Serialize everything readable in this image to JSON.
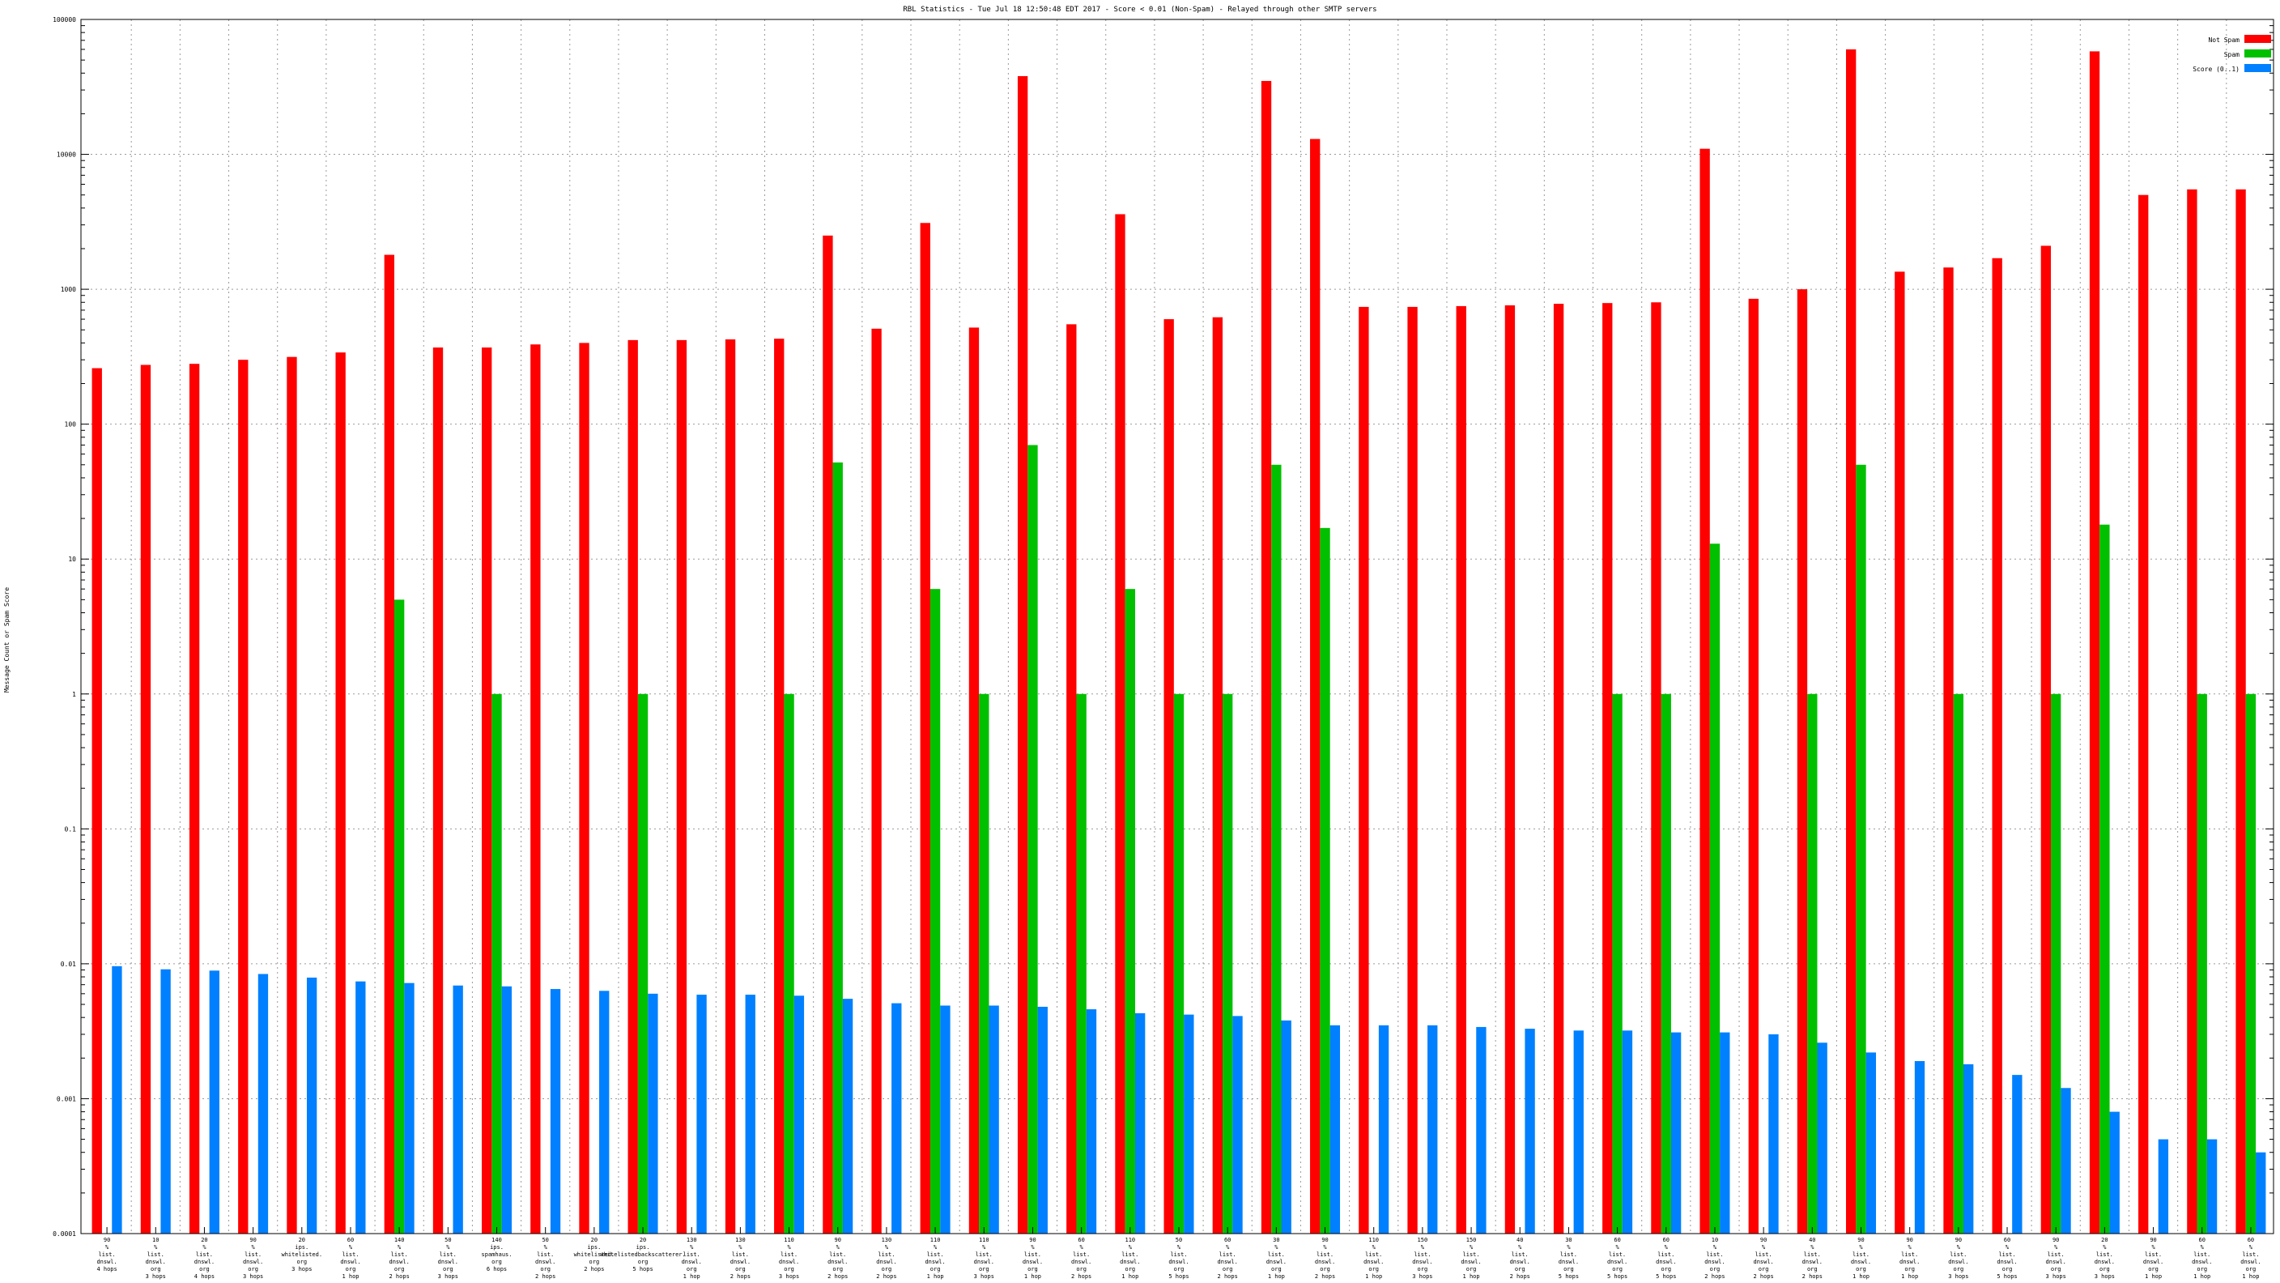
{
  "chart_data": {
    "type": "bar",
    "title": "RBL Statistics - Tue Jul 18 12:50:48 EDT 2017 - Score < 0.01 (Non-Spam) - Relayed through other SMTP servers",
    "ylabel": "Message Count or Spam Score",
    "xlabel": "",
    "y_scale": "log",
    "ylim": [
      0.0001,
      100000
    ],
    "y_ticks": [
      "0.0001",
      "0.001",
      "0.01",
      "0.1",
      "1",
      "10",
      "100",
      "1000",
      "10000",
      "100000"
    ],
    "grid": true,
    "legend_position": "top-right",
    "colors": {
      "not_spam": "#ff0000",
      "spam": "#00c000",
      "score": "#0080ff"
    },
    "categories": [
      [
        "90",
        "%",
        "list.",
        "dnswl.",
        "4 hops"
      ],
      [
        "10",
        "%",
        "list.",
        "dnswl.",
        "org",
        "3 hops"
      ],
      [
        "20",
        "%",
        "list.",
        "dnswl.",
        "org",
        "4 hops"
      ],
      [
        "90",
        "%",
        "list.",
        "dnswl.",
        "org",
        "3 hops"
      ],
      [
        "20",
        "ips.",
        "whitelisted.",
        "org",
        "3 hops"
      ],
      [
        "60",
        "%",
        "list.",
        "dnswl.",
        "org",
        "1 hop"
      ],
      [
        "140",
        "%",
        "list.",
        "dnswl.",
        "org",
        "2 hops"
      ],
      [
        "50",
        "%",
        "list.",
        "dnswl.",
        "org",
        "3 hops"
      ],
      [
        "140",
        "ips.",
        "spamhaus.",
        "org",
        "6 hops"
      ],
      [
        "50",
        "%",
        "list.",
        "dnswl.",
        "org",
        "2 hops"
      ],
      [
        "20",
        "ips.",
        "whitelisted.",
        "org",
        "2 hops"
      ],
      [
        "20",
        "ips.",
        "whitelistedbackscatterer.",
        "org",
        "5 hops"
      ],
      [
        "130",
        "%",
        "list.",
        "dnswl.",
        "org",
        "1 hop"
      ],
      [
        "130",
        "%",
        "list.",
        "dnswl.",
        "org",
        "2 hops"
      ],
      [
        "110",
        "%",
        "list.",
        "dnswl.",
        "org",
        "3 hops"
      ],
      [
        "90",
        "%",
        "list.",
        "dnswl.",
        "org",
        "2 hops"
      ],
      [
        "130",
        "%",
        "list.",
        "dnswl.",
        "org",
        "2 hops"
      ],
      [
        "110",
        "%",
        "list.",
        "dnswl.",
        "org",
        "1 hop"
      ],
      [
        "110",
        "%",
        "list.",
        "dnswl.",
        "org",
        "3 hops"
      ],
      [
        "90",
        "%",
        "list.",
        "dnswl.",
        "org",
        "1 hop"
      ],
      [
        "60",
        "%",
        "list.",
        "dnswl.",
        "org",
        "2 hops"
      ],
      [
        "110",
        "%",
        "list.",
        "dnswl.",
        "org",
        "1 hop"
      ],
      [
        "50",
        "%",
        "list.",
        "dnswl.",
        "org",
        "5 hops"
      ],
      [
        "60",
        "%",
        "list.",
        "dnswl.",
        "org",
        "2 hops"
      ],
      [
        "30",
        "%",
        "list.",
        "dnswl.",
        "org",
        "1 hop"
      ],
      [
        "90",
        "%",
        "list.",
        "dnswl.",
        "org",
        "2 hops"
      ],
      [
        "110",
        "%",
        "list.",
        "dnswl.",
        "org",
        "1 hop"
      ],
      [
        "150",
        "%",
        "list.",
        "dnswl.",
        "org",
        "3 hops"
      ],
      [
        "150",
        "%",
        "list.",
        "dnswl.",
        "org",
        "1 hop"
      ],
      [
        "40",
        "%",
        "list.",
        "dnswl.",
        "org",
        "2 hops"
      ],
      [
        "30",
        "%",
        "list.",
        "dnswl.",
        "org",
        "5 hops"
      ],
      [
        "60",
        "%",
        "list.",
        "dnswl.",
        "org",
        "5 hops"
      ],
      [
        "60",
        "%",
        "list.",
        "dnswl.",
        "org",
        "5 hops"
      ],
      [
        "10",
        "%",
        "list.",
        "dnswl.",
        "org",
        "2 hops"
      ],
      [
        "90",
        "%",
        "list.",
        "dnswl.",
        "org",
        "2 hops"
      ],
      [
        "40",
        "%",
        "list.",
        "dnswl.",
        "org",
        "2 hops"
      ],
      [
        "90",
        "%",
        "list.",
        "dnswl.",
        "org",
        "1 hop"
      ],
      [
        "90",
        "%",
        "list.",
        "dnswl.",
        "org",
        "1 hop"
      ],
      [
        "90",
        "%",
        "list.",
        "dnswl.",
        "org",
        "3 hops"
      ],
      [
        "60",
        "%",
        "list.",
        "dnswl.",
        "org",
        "5 hops"
      ],
      [
        "90",
        "%",
        "list.",
        "dnswl.",
        "org",
        "3 hops"
      ],
      [
        "20",
        "%",
        "list.",
        "dnswl.",
        "org",
        "3 hops"
      ],
      [
        "90",
        "%",
        "list.",
        "dnswl.",
        "org",
        "1 hop"
      ],
      [
        "60",
        "%",
        "list.",
        "dnswl.",
        "org",
        "1 hop"
      ],
      [
        "60",
        "%",
        "list.",
        "dnswl.",
        "org",
        "1 hop"
      ]
    ],
    "series": [
      {
        "name": "Not Spam",
        "color": "#ff0000",
        "values": [
          260,
          275,
          280,
          300,
          315,
          340,
          1800,
          370,
          370,
          390,
          400,
          420,
          420,
          425,
          430,
          2500,
          510,
          3100,
          520,
          38000,
          550,
          3600,
          600,
          620,
          35000,
          13000,
          740,
          740,
          750,
          760,
          780,
          790,
          800,
          11000,
          850,
          1000,
          60000,
          1350,
          1450,
          1700,
          2100,
          58000,
          5000,
          5500,
          5500
        ]
      },
      {
        "name": "Spam",
        "color": "#00c000",
        "values": [
          0,
          0,
          0,
          0,
          0,
          0,
          5,
          0,
          1,
          0,
          0,
          1,
          0,
          0,
          1,
          52,
          0,
          6,
          1,
          70,
          1,
          6,
          1,
          1,
          50,
          17,
          0,
          0,
          0,
          0,
          0,
          1,
          1,
          13,
          0,
          1,
          50,
          0,
          1,
          0,
          1,
          18,
          0,
          1,
          1
        ]
      },
      {
        "name": "Score (0..1)",
        "color": "#0080ff",
        "values": [
          0.0096,
          0.0091,
          0.0089,
          0.0084,
          0.0079,
          0.0074,
          0.0072,
          0.0069,
          0.0068,
          0.0065,
          0.0063,
          0.006,
          0.0059,
          0.0059,
          0.0058,
          0.0055,
          0.0051,
          0.0049,
          0.0049,
          0.0048,
          0.0046,
          0.0043,
          0.0042,
          0.0041,
          0.0038,
          0.0035,
          0.0035,
          0.0035,
          0.0034,
          0.0033,
          0.0032,
          0.0032,
          0.0031,
          0.0031,
          0.003,
          0.0026,
          0.0022,
          0.0019,
          0.0018,
          0.0015,
          0.0012,
          0.0008,
          0.0005,
          0.0005,
          0.0004
        ]
      }
    ]
  }
}
